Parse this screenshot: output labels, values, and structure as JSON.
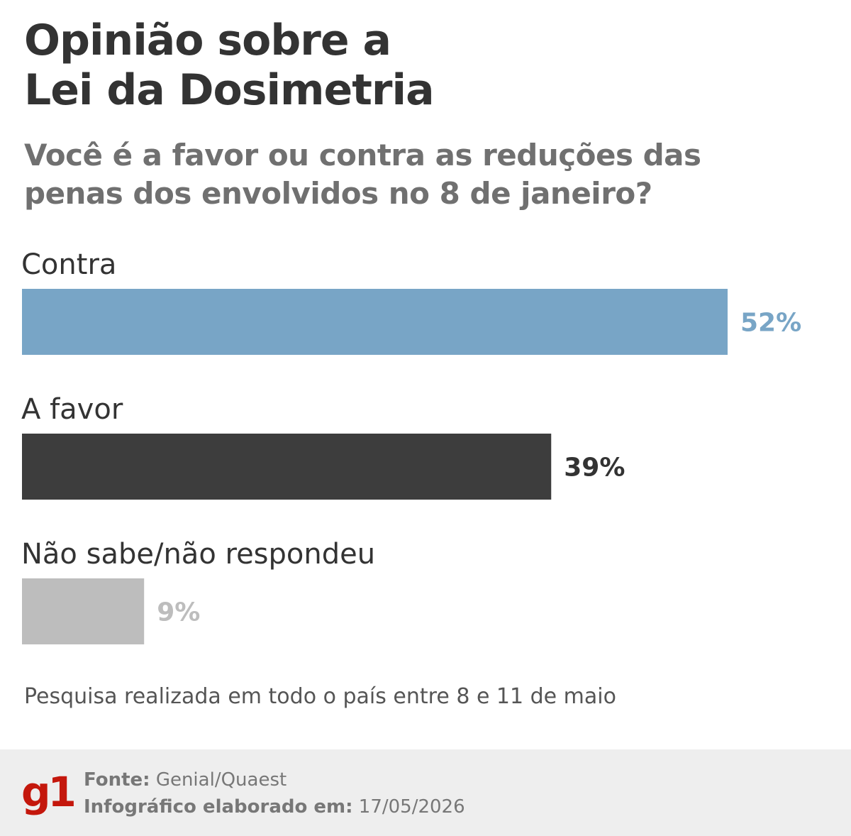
{
  "header": {
    "title_line1": "Opinião sobre a",
    "title_line2": "Lei da Dosimetria",
    "subtitle_line1": "Você é a favor ou contra as reduções das",
    "subtitle_line2": "penas dos envolvidos no 8 de janeiro?"
  },
  "chart_data": {
    "type": "bar",
    "orientation": "horizontal",
    "categories": [
      "Contra",
      "A favor",
      "Não sabe/não respondeu"
    ],
    "values": [
      52,
      39,
      9
    ],
    "value_labels": [
      "52%",
      "39%",
      "9%"
    ],
    "colors": [
      "#78a5c6",
      "#3d3d3d",
      "#bdbdbd"
    ],
    "label_colors": [
      "#78a5c6",
      "#333333",
      "#bdbdbd"
    ],
    "xlim": [
      0,
      100
    ],
    "grid": false
  },
  "note": "Pesquisa realizada em todo o país entre 8 e 11 de maio",
  "footer": {
    "logo": "g1",
    "source_label": "Fonte:",
    "source_value": "Genial/Quaest",
    "date_label": "Infográfico elaborado em:",
    "date_value": "17/05/2026"
  },
  "colors": {
    "brand": "#c4170c",
    "footer_bg": "#eeeeee"
  }
}
